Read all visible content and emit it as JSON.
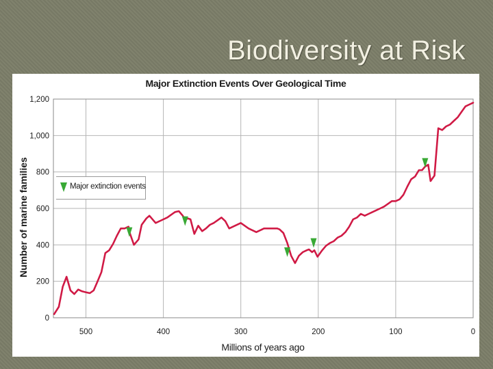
{
  "slide": {
    "title": "Biodiversity at Risk"
  },
  "colors": {
    "series": "#d01a45",
    "marker": "#39a935",
    "grid": "#b5b5b5"
  },
  "chart_data": {
    "type": "line",
    "title": "Major Extinction Events Over Geological Time",
    "xlabel": "Millions of years ago",
    "ylabel": "Number of marine families",
    "xlim": [
      542,
      0
    ],
    "ylim": [
      0,
      1200
    ],
    "x_ticks": [
      500,
      400,
      300,
      200,
      100,
      0
    ],
    "y_ticks": [
      0,
      200,
      400,
      600,
      800,
      1000,
      1200
    ],
    "x_tick_labels": [
      "500",
      "400",
      "300",
      "200",
      "100",
      "0"
    ],
    "y_tick_labels": [
      "0",
      "200",
      "400",
      "600",
      "800",
      "1,000",
      "1,200"
    ],
    "grid": true,
    "legend": {
      "label": "Major extinction events",
      "position": "upper-left"
    },
    "series": [
      {
        "x": [
          541,
          535,
          530,
          525,
          520,
          515,
          510,
          505,
          500,
          495,
          490,
          485,
          480,
          475,
          470,
          465,
          460,
          455,
          450,
          445,
          443,
          438,
          432,
          428,
          422,
          418,
          410,
          400,
          395,
          390,
          385,
          380,
          375,
          372,
          368,
          365,
          360,
          355,
          350,
          345,
          340,
          335,
          330,
          325,
          320,
          315,
          300,
          290,
          280,
          270,
          260,
          253,
          250,
          245,
          240,
          235,
          230,
          225,
          220,
          215,
          212,
          208,
          205,
          201,
          195,
          190,
          185,
          180,
          175,
          170,
          165,
          160,
          155,
          150,
          145,
          140,
          135,
          130,
          125,
          120,
          115,
          110,
          105,
          100,
          95,
          90,
          85,
          80,
          75,
          70,
          66,
          62,
          58,
          55,
          50,
          45,
          40,
          35,
          30,
          25,
          20,
          15,
          10,
          5,
          0
        ],
        "values": [
          20,
          60,
          170,
          225,
          150,
          130,
          155,
          145,
          140,
          135,
          150,
          200,
          250,
          355,
          370,
          405,
          450,
          490,
          490,
          500,
          460,
          400,
          430,
          510,
          545,
          560,
          520,
          540,
          550,
          565,
          580,
          585,
          560,
          540,
          545,
          540,
          460,
          505,
          475,
          490,
          510,
          520,
          535,
          550,
          530,
          490,
          520,
          490,
          470,
          490,
          490,
          490,
          485,
          465,
          410,
          340,
          300,
          340,
          360,
          370,
          375,
          360,
          370,
          335,
          370,
          395,
          410,
          420,
          440,
          450,
          470,
          500,
          540,
          550,
          570,
          560,
          570,
          580,
          590,
          600,
          610,
          625,
          640,
          640,
          650,
          675,
          720,
          760,
          775,
          810,
          810,
          830,
          840,
          750,
          780,
          1040,
          1030,
          1050,
          1060,
          1080,
          1100,
          1130,
          1160,
          1170,
          1180
        ]
      }
    ],
    "extinction_events": [
      {
        "x": 444,
        "y": 470
      },
      {
        "x": 372,
        "y": 530
      },
      {
        "x": 240,
        "y": 360
      },
      {
        "x": 206,
        "y": 410
      },
      {
        "x": 62,
        "y": 850
      }
    ]
  }
}
